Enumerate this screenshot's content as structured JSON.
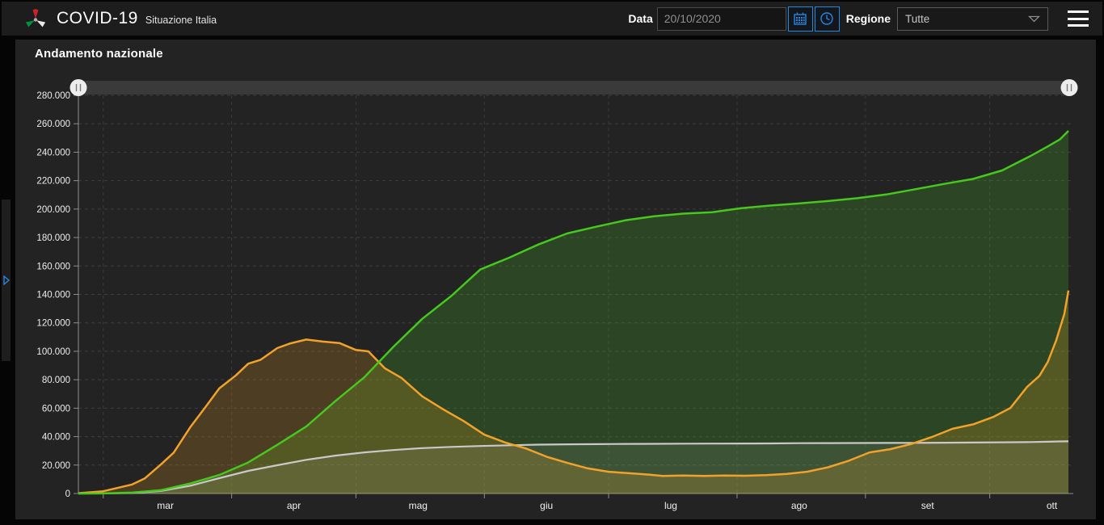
{
  "header": {
    "title": "COVID-19",
    "subtitle": "Situazione Italia",
    "accent_blue": "#1e88e5",
    "controls": {
      "date_label": "Data",
      "date_value": "20/10/2020",
      "region_label": "Regione",
      "region_value": "Tutte"
    }
  },
  "panel": {
    "title": "Andamento nazionale"
  },
  "chart_data": {
    "type": "area",
    "title": "Andamento nazionale",
    "x_range": [
      "2020-02-24",
      "2020-10-20"
    ],
    "ylim": [
      0,
      280000
    ],
    "grid": true,
    "legend": "none",
    "y_ticks": [
      {
        "value": 0,
        "label": "0"
      },
      {
        "value": 20000,
        "label": "20.000"
      },
      {
        "value": 40000,
        "label": "40.000"
      },
      {
        "value": 60000,
        "label": "60.000"
      },
      {
        "value": 80000,
        "label": "80.000"
      },
      {
        "value": 100000,
        "label": "100.000"
      },
      {
        "value": 120000,
        "label": "120.000"
      },
      {
        "value": 140000,
        "label": "140.000"
      },
      {
        "value": 160000,
        "label": "160.000"
      },
      {
        "value": 180000,
        "label": "180.000"
      },
      {
        "value": 200000,
        "label": "200.000"
      },
      {
        "value": 220000,
        "label": "220.000"
      },
      {
        "value": 240000,
        "label": "240.000"
      },
      {
        "value": 260000,
        "label": "260.000"
      },
      {
        "value": 280000,
        "label": "280.000"
      }
    ],
    "x_ticks": [
      {
        "date": "2020-03-01",
        "label": "mar"
      },
      {
        "date": "2020-04-01",
        "label": "apr"
      },
      {
        "date": "2020-05-01",
        "label": "mag"
      },
      {
        "date": "2020-06-01",
        "label": "giu"
      },
      {
        "date": "2020-07-01",
        "label": "lug"
      },
      {
        "date": "2020-08-01",
        "label": "ago"
      },
      {
        "date": "2020-09-01",
        "label": "set"
      },
      {
        "date": "2020-10-01",
        "label": "ott"
      }
    ],
    "range_slider": {
      "start_fraction": 0,
      "end_fraction": 1
    },
    "series": [
      {
        "id": "green-series",
        "color": "#46c81e",
        "fill": "rgba(80,205,40,0.20)",
        "points": [
          [
            "2020-02-24",
            1
          ],
          [
            "2020-03-01",
            83
          ],
          [
            "2020-03-08",
            622
          ],
          [
            "2020-03-15",
            2335
          ],
          [
            "2020-03-22",
            7024
          ],
          [
            "2020-03-29",
            13030
          ],
          [
            "2020-04-05",
            21815
          ],
          [
            "2020-04-12",
            34211
          ],
          [
            "2020-04-19",
            47055
          ],
          [
            "2020-04-26",
            64928
          ],
          [
            "2020-05-03",
            81654
          ],
          [
            "2020-05-10",
            103031
          ],
          [
            "2020-05-17",
            122810
          ],
          [
            "2020-05-24",
            138840
          ],
          [
            "2020-05-31",
            157507
          ],
          [
            "2020-06-07",
            165837
          ],
          [
            "2020-06-14",
            175058
          ],
          [
            "2020-06-21",
            182893
          ],
          [
            "2020-06-28",
            187615
          ],
          [
            "2020-07-05",
            192108
          ],
          [
            "2020-07-12",
            194928
          ],
          [
            "2020-07-19",
            196806
          ],
          [
            "2020-07-26",
            197842
          ],
          [
            "2020-08-02",
            200589
          ],
          [
            "2020-08-09",
            202461
          ],
          [
            "2020-08-16",
            203968
          ],
          [
            "2020-08-23",
            205662
          ],
          [
            "2020-08-30",
            207653
          ],
          [
            "2020-09-06",
            210238
          ],
          [
            "2020-09-13",
            213950
          ],
          [
            "2020-09-20",
            217716
          ],
          [
            "2020-09-27",
            221203
          ],
          [
            "2020-10-04",
            227203
          ],
          [
            "2020-10-11",
            237549
          ],
          [
            "2020-10-15",
            244065
          ],
          [
            "2020-10-18",
            249127
          ],
          [
            "2020-10-20",
            255005
          ]
        ]
      },
      {
        "id": "orange-series",
        "color": "#f2a22b",
        "fill": "rgba(243,166,35,0.20)",
        "points": [
          [
            "2020-02-24",
            221
          ],
          [
            "2020-03-01",
            1577
          ],
          [
            "2020-03-08",
            6387
          ],
          [
            "2020-03-11",
            10590
          ],
          [
            "2020-03-15",
            20603
          ],
          [
            "2020-03-18",
            28710
          ],
          [
            "2020-03-22",
            46638
          ],
          [
            "2020-03-26",
            62013
          ],
          [
            "2020-03-29",
            73880
          ],
          [
            "2020-04-02",
            83049
          ],
          [
            "2020-04-05",
            91246
          ],
          [
            "2020-04-08",
            94067
          ],
          [
            "2020-04-12",
            102253
          ],
          [
            "2020-04-15",
            105418
          ],
          [
            "2020-04-19",
            108257
          ],
          [
            "2020-04-23",
            106848
          ],
          [
            "2020-04-27",
            105813
          ],
          [
            "2020-05-01",
            100943
          ],
          [
            "2020-05-04",
            99980
          ],
          [
            "2020-05-08",
            87961
          ],
          [
            "2020-05-12",
            81266
          ],
          [
            "2020-05-17",
            68351
          ],
          [
            "2020-05-22",
            59322
          ],
          [
            "2020-05-27",
            50966
          ],
          [
            "2020-06-01",
            41367
          ],
          [
            "2020-06-06",
            35877
          ],
          [
            "2020-06-11",
            31710
          ],
          [
            "2020-06-16",
            25909
          ],
          [
            "2020-06-21",
            21543
          ],
          [
            "2020-06-26",
            17638
          ],
          [
            "2020-07-01",
            15255
          ],
          [
            "2020-07-06",
            14242
          ],
          [
            "2020-07-11",
            13157
          ],
          [
            "2020-07-14",
            12301
          ],
          [
            "2020-07-19",
            12581
          ],
          [
            "2020-07-24",
            12368
          ],
          [
            "2020-07-29",
            12581
          ],
          [
            "2020-08-03",
            12474
          ],
          [
            "2020-08-08",
            12924
          ],
          [
            "2020-08-13",
            13791
          ],
          [
            "2020-08-18",
            15360
          ],
          [
            "2020-08-23",
            18438
          ],
          [
            "2020-08-28",
            23035
          ],
          [
            "2020-09-02",
            28915
          ],
          [
            "2020-09-07",
            31194
          ],
          [
            "2020-09-12",
            34734
          ],
          [
            "2020-09-17",
            39712
          ],
          [
            "2020-09-22",
            45489
          ],
          [
            "2020-09-27",
            48593
          ],
          [
            "2020-10-02",
            53997
          ],
          [
            "2020-10-06",
            60134
          ],
          [
            "2020-10-10",
            74829
          ],
          [
            "2020-10-13",
            82764
          ],
          [
            "2020-10-15",
            92445
          ],
          [
            "2020-10-17",
            107312
          ],
          [
            "2020-10-19",
            126237
          ],
          [
            "2020-10-20",
            142739
          ]
        ]
      },
      {
        "id": "gray-series",
        "color": "#c9c9c9",
        "fill": "rgba(220,220,220,0.10)",
        "points": [
          [
            "2020-02-24",
            7
          ],
          [
            "2020-03-01",
            34
          ],
          [
            "2020-03-08",
            366
          ],
          [
            "2020-03-15",
            1809
          ],
          [
            "2020-03-22",
            5476
          ],
          [
            "2020-03-29",
            10779
          ],
          [
            "2020-04-05",
            15887
          ],
          [
            "2020-04-12",
            19899
          ],
          [
            "2020-04-19",
            23660
          ],
          [
            "2020-04-26",
            26644
          ],
          [
            "2020-05-03",
            28884
          ],
          [
            "2020-05-10",
            30560
          ],
          [
            "2020-05-17",
            31908
          ],
          [
            "2020-05-24",
            32785
          ],
          [
            "2020-05-31",
            33415
          ],
          [
            "2020-06-07",
            33899
          ],
          [
            "2020-06-14",
            34335
          ],
          [
            "2020-06-21",
            34610
          ],
          [
            "2020-06-28",
            34716
          ],
          [
            "2020-07-05",
            34861
          ],
          [
            "2020-07-12",
            34954
          ],
          [
            "2020-07-19",
            35042
          ],
          [
            "2020-07-26",
            35102
          ],
          [
            "2020-08-02",
            35154
          ],
          [
            "2020-08-09",
            35209
          ],
          [
            "2020-08-16",
            35400
          ],
          [
            "2020-08-23",
            35430
          ],
          [
            "2020-08-30",
            35473
          ],
          [
            "2020-09-06",
            35541
          ],
          [
            "2020-09-13",
            35633
          ],
          [
            "2020-09-20",
            35707
          ],
          [
            "2020-09-27",
            35818
          ],
          [
            "2020-10-04",
            36002
          ],
          [
            "2020-10-11",
            36166
          ],
          [
            "2020-10-15",
            36427
          ],
          [
            "2020-10-18",
            36616
          ],
          [
            "2020-10-20",
            36705
          ]
        ]
      }
    ]
  }
}
